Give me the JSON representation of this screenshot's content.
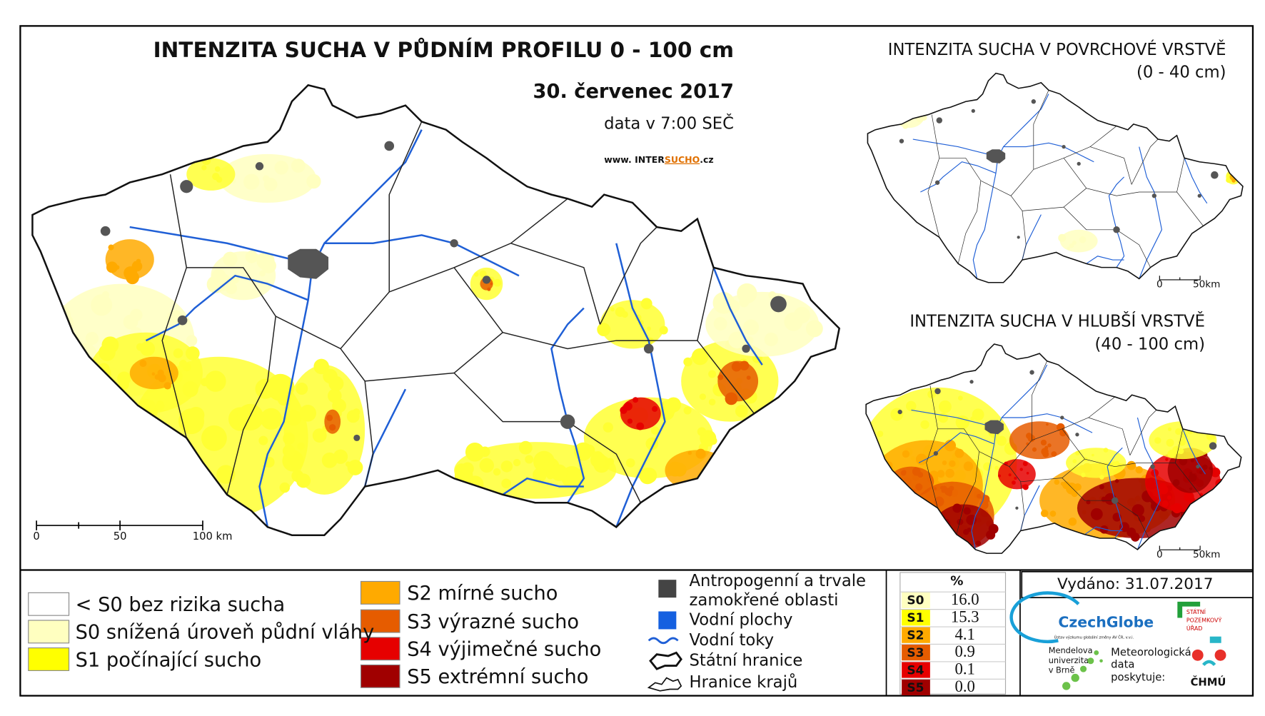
{
  "main_map": {
    "title": "INTENZITA SUCHA V PŮDNÍM PROFILU 0 - 100 cm",
    "date": "30. červenec 2017",
    "data_time": "data v 7:00 SEČ",
    "website": [
      "www. INTER",
      "SUCHO",
      ".cz"
    ],
    "scale": [
      "0",
      "50",
      "100 km"
    ]
  },
  "top_inset": {
    "title": "INTENZITA SUCHA V POVRCHOVÉ VRSTVĚ",
    "subtitle": "(0 - 40 cm)",
    "scale": [
      "0",
      "50km"
    ]
  },
  "bottom_inset": {
    "title": "INTENZITA SUCHA V HLUBŠÍ VRSTVĚ",
    "subtitle": "(40 - 100 cm)",
    "scale": [
      "0",
      "50km"
    ]
  },
  "legend": {
    "classes": [
      "< S0 bez rizika sucha",
      "S0 snížená úroveň půdní vláhy",
      "S1 počínající sucho",
      "S2 mírné sucho",
      "S3 výrazné sucho",
      "S4 výjimečné sucho",
      "S5 extrémní sucho"
    ],
    "features": [
      [
        "Antropogenní a trvale",
        "zamokřené oblasti"
      ],
      [
        "Vodní plochy"
      ],
      [
        "Vodní toky"
      ],
      [
        "Státní hranice"
      ],
      [
        "Hranice krajů"
      ]
    ]
  },
  "stats_table": {
    "header": "%",
    "rows": [
      [
        "S0",
        "16.0"
      ],
      [
        "S1",
        "15.3"
      ],
      [
        "S2",
        "4.1"
      ],
      [
        "S3",
        "0.9"
      ],
      [
        "S4",
        "0.1"
      ],
      [
        "S5",
        "0.0"
      ]
    ]
  },
  "issued": "Vydáno: 31.07.2017",
  "logos": {
    "czechglobe": "CzechGlobe",
    "czechglobe_sub": "Ústav výzkumu globální změny AV ČR, v.v.i.",
    "mendel": [
      "Mendelova",
      "univerzita",
      "v Brně"
    ],
    "chmu_text": [
      "Meteorologická",
      "data",
      "poskytuje:"
    ],
    "chmu": "ČHMÚ",
    "spu": [
      "STÁTNÍ",
      "POZEMKOVÝ",
      "ÚŘAD"
    ]
  }
}
